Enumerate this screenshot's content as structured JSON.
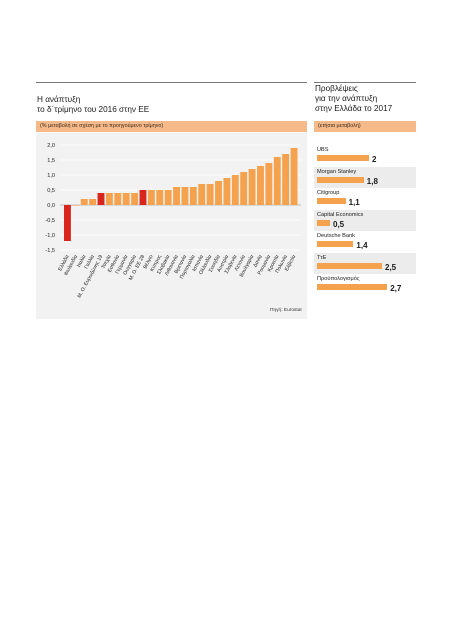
{
  "left": {
    "title": "Η ανάπτυξη\nτο δ΄τρίμηνο του 2016 στην ΕΕ",
    "subtitle": "(% μεταβολή σε σχέση με το προηγούμενο τρίμηνο)",
    "source": "Πηγή: Eurostat"
  },
  "right": {
    "title": "Προβλέψεις\nγια την ανάπτυξη\nστην Ελλάδα το 2017",
    "subtitle": "(ετήσια μεταβολή)"
  },
  "colors": {
    "bar": "#f4a24e",
    "highlight": "#d9261c",
    "band": "#f5b98a",
    "panel": "#f2f2f2"
  },
  "chart_data": [
    {
      "type": "bar",
      "title": "Η ανάπτυξη το δ΄τρίμηνο του 2016 στην ΕΕ",
      "subtitle": "(% μεταβολή σε σχέση με το προηγούμενο τρίμηνο)",
      "categories": [
        "Ελλάδα",
        "Φινλανδία",
        "Ιταλία",
        "Γαλλία",
        "Μ. Ο. Ευρωζώνης 19",
        "Τσεχία",
        "Εσθονία",
        "Γερμανία",
        "Ουγγαρία",
        "Μ. Ο. ΕΕ 28",
        "Βέλγιο",
        "Κύπρος",
        "Σλοβακία",
        "Λιθουανία",
        "Βρετανία",
        "Πορτογαλία",
        "Ισπανία",
        "Ολλανδία",
        "Σουηδία",
        "Αυστρία",
        "Σλοβενία",
        "Λετονία",
        "Βουλγαρία",
        "Δανία",
        "Ρουμανία",
        "Κροατία",
        "Πολωνία",
        "Ελβετία"
      ],
      "values": [
        -1.2,
        0.0,
        0.2,
        0.2,
        0.4,
        0.4,
        0.4,
        0.4,
        0.4,
        0.5,
        0.5,
        0.5,
        0.5,
        0.6,
        0.6,
        0.6,
        0.7,
        0.7,
        0.8,
        0.9,
        1.0,
        1.1,
        1.2,
        1.3,
        1.4,
        1.6,
        1.7,
        1.9
      ],
      "highlight": [
        "Ελλάδα",
        "Μ. Ο. Ευρωζώνης 19",
        "Μ. Ο. ΕΕ 28"
      ],
      "ylim": [
        -1.5,
        2.0
      ],
      "yticks": [
        "2,0",
        "1,5",
        "1,0",
        "0,5",
        "0,0",
        "-0,5",
        "-1,0",
        "-1,5"
      ],
      "grid": true
    },
    {
      "type": "bar",
      "title": "Προβλέψεις για την ανάπτυξη στην Ελλάδα το 2017",
      "subtitle": "(ετήσια μεταβολή)",
      "categories": [
        "UBS",
        "Morgan Stanley",
        "Citigroup",
        "Capital Economics",
        "Deutsche Bank",
        "ΤτΕ",
        "Προϋπολογισμός"
      ],
      "values": [
        2.0,
        1.8,
        1.1,
        0.5,
        1.4,
        2.5,
        2.7
      ],
      "labels": [
        "2",
        "1,8",
        "1,1",
        "0,5",
        "1,4",
        "2,5",
        "2,7"
      ],
      "xlim": [
        0,
        3.0
      ]
    }
  ]
}
